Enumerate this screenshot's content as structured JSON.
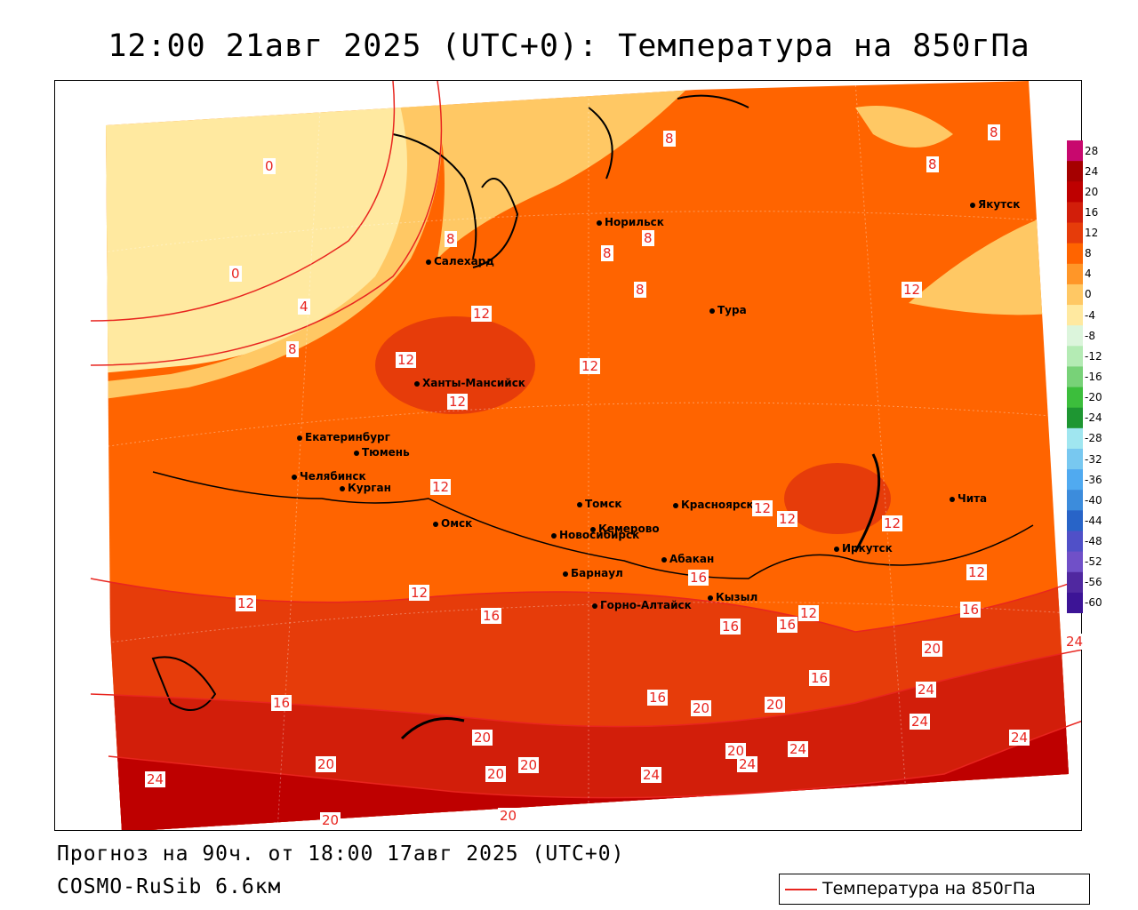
{
  "title": "12:00 21авг 2025 (UTC+0): Температура на 850гПа",
  "footer": {
    "forecast": "Прогноз на 90ч. от 18:00 17авг 2025 (UTC+0)",
    "model": "COSMO-RuSib 6.6км"
  },
  "legend": {
    "label": "Температура на 850гПа",
    "line_color": "#e8251f"
  },
  "colorbar": {
    "ticks": [
      "28",
      "24",
      "20",
      "16",
      "12",
      "8",
      "4",
      "0",
      "-4",
      "-8",
      "-12",
      "-16",
      "-20",
      "-24",
      "-28",
      "-32",
      "-36",
      "-40",
      "-44",
      "-48",
      "-52",
      "-56",
      "-60"
    ],
    "colors": [
      "#c8086e",
      "#a50000",
      "#be0000",
      "#d21e0a",
      "#e63c0a",
      "#ff6400",
      "#ff9628",
      "#ffc864",
      "#ffe9a0",
      "#dcf5dc",
      "#b4ebb4",
      "#78d278",
      "#3cbe3c",
      "#1e9632",
      "#a0e6f0",
      "#78c8f0",
      "#50aaf0",
      "#3c8cdc",
      "#2864c8",
      "#5050c8",
      "#7050c8",
      "#5028a0",
      "#3c1496"
    ]
  },
  "cities": [
    {
      "name": "Салехард"
    },
    {
      "name": "Норильск"
    },
    {
      "name": "Якутск"
    },
    {
      "name": "Тура"
    },
    {
      "name": "Ханты-Мансийск"
    },
    {
      "name": "Екатеринбург"
    },
    {
      "name": "Тюмень"
    },
    {
      "name": "Челябинск"
    },
    {
      "name": "Курган"
    },
    {
      "name": "Омск"
    },
    {
      "name": "Новосибирск"
    },
    {
      "name": "Томск"
    },
    {
      "name": "Кемерово"
    },
    {
      "name": "Красноярск"
    },
    {
      "name": "Барнаул"
    },
    {
      "name": "Абакан"
    },
    {
      "name": "Горно-Алтайск"
    },
    {
      "name": "Кызыл"
    },
    {
      "name": "Иркутск"
    },
    {
      "name": "Чита"
    }
  ],
  "isotherm_labels": [
    "0",
    "0",
    "4",
    "8",
    "8",
    "8",
    "8",
    "8",
    "8",
    "8",
    "8",
    "12",
    "12",
    "12",
    "12",
    "12",
    "12",
    "12",
    "12",
    "12",
    "12",
    "12",
    "12",
    "12",
    "16",
    "16",
    "16",
    "16",
    "16",
    "16",
    "16",
    "16",
    "20",
    "20",
    "20",
    "20",
    "20",
    "20",
    "20",
    "20",
    "20",
    "20",
    "24",
    "24",
    "24",
    "24",
    "24",
    "24",
    "24",
    "24"
  ]
}
